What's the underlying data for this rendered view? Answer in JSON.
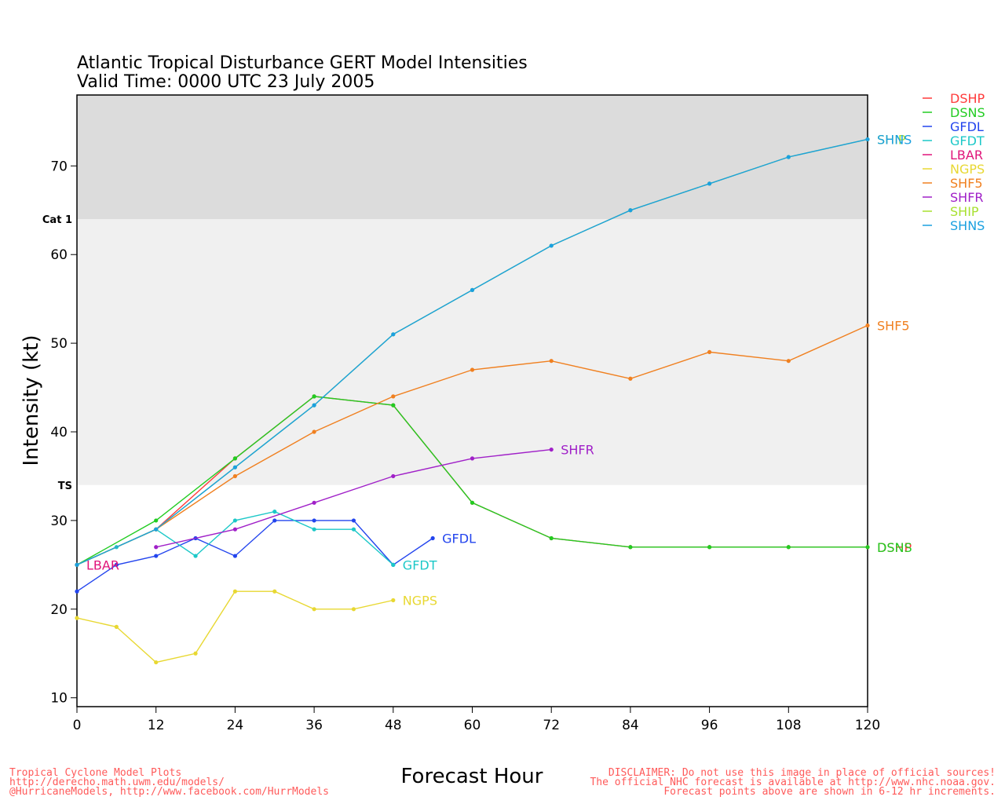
{
  "chart_data": {
    "type": "line",
    "title": "Atlantic Tropical Disturbance GERT Model Intensities",
    "subtitle": "Valid Time: 0000 UTC 23 July 2005",
    "xlabel": "Forecast Hour",
    "ylabel": "Intensity (kt)",
    "xlim": [
      0,
      120
    ],
    "ylim": [
      9,
      78
    ],
    "xticks": [
      "0",
      "12",
      "24",
      "36",
      "48",
      "60",
      "72",
      "84",
      "96",
      "108",
      "120"
    ],
    "yticks": [
      "10",
      "20",
      "30",
      "40",
      "50",
      "60",
      "70"
    ],
    "bands": [
      {
        "label": "TS",
        "from": 34,
        "to": 64,
        "color": "#f0f0f0"
      },
      {
        "label": "Cat 1",
        "from": 64,
        "to": 78,
        "color": "#dcdcdc"
      }
    ],
    "legend_position": "right",
    "series": [
      {
        "name": "DSHP",
        "color": "#ff3b3b",
        "points": [
          [
            0,
            25
          ],
          [
            12,
            29
          ],
          [
            24,
            37
          ],
          [
            36,
            44
          ],
          [
            48,
            43
          ],
          [
            60,
            32
          ],
          [
            72,
            28
          ],
          [
            84,
            27
          ],
          [
            96,
            27
          ],
          [
            108,
            27
          ],
          [
            120,
            27
          ]
        ],
        "end_label": "DSHP"
      },
      {
        "name": "DSNS",
        "color": "#22cc22",
        "points": [
          [
            0,
            25
          ],
          [
            12,
            30
          ],
          [
            24,
            37
          ],
          [
            36,
            44
          ],
          [
            48,
            43
          ],
          [
            60,
            32
          ],
          [
            72,
            28
          ],
          [
            84,
            27
          ],
          [
            96,
            27
          ],
          [
            108,
            27
          ],
          [
            120,
            27
          ]
        ],
        "end_label": "DSNS"
      },
      {
        "name": "GFDL",
        "color": "#2244ee",
        "points": [
          [
            0,
            22
          ],
          [
            6,
            25
          ],
          [
            12,
            26
          ],
          [
            18,
            28
          ],
          [
            24,
            26
          ],
          [
            30,
            30
          ],
          [
            36,
            30
          ],
          [
            42,
            30
          ],
          [
            48,
            25
          ],
          [
            54,
            28
          ]
        ],
        "end_label": "GFDL"
      },
      {
        "name": "GFDT",
        "color": "#1cc8c8",
        "points": [
          [
            0,
            25
          ],
          [
            6,
            27
          ],
          [
            12,
            29
          ],
          [
            18,
            26
          ],
          [
            24,
            30
          ],
          [
            30,
            31
          ],
          [
            36,
            29
          ],
          [
            42,
            29
          ],
          [
            48,
            25
          ]
        ],
        "end_label": "GFDT"
      },
      {
        "name": "LBAR",
        "color": "#e0157a",
        "points": [
          [
            0,
            25
          ]
        ],
        "end_label": "LBAR"
      },
      {
        "name": "NGPS",
        "color": "#e8d832",
        "points": [
          [
            0,
            19
          ],
          [
            6,
            18
          ],
          [
            12,
            14
          ],
          [
            18,
            15
          ],
          [
            24,
            22
          ],
          [
            30,
            22
          ],
          [
            36,
            20
          ],
          [
            42,
            20
          ],
          [
            48,
            21
          ]
        ],
        "end_label": "NGPS"
      },
      {
        "name": "SHF5",
        "color": "#f08020",
        "points": [
          [
            0,
            25
          ],
          [
            12,
            29
          ],
          [
            24,
            35
          ],
          [
            36,
            40
          ],
          [
            48,
            44
          ],
          [
            60,
            47
          ],
          [
            72,
            48
          ],
          [
            84,
            46
          ],
          [
            96,
            49
          ],
          [
            108,
            48
          ],
          [
            120,
            52
          ]
        ],
        "end_label": "SHF5"
      },
      {
        "name": "SHFR",
        "color": "#a020c8",
        "points": [
          [
            12,
            27
          ],
          [
            24,
            29
          ],
          [
            36,
            32
          ],
          [
            48,
            35
          ],
          [
            60,
            37
          ],
          [
            72,
            38
          ]
        ],
        "end_label": "SHFR"
      },
      {
        "name": "SHIP",
        "color": "#a8e030",
        "points": [
          [
            0,
            25
          ],
          [
            12,
            29
          ],
          [
            24,
            36
          ],
          [
            36,
            43
          ],
          [
            48,
            51
          ],
          [
            60,
            56
          ],
          [
            72,
            61
          ],
          [
            84,
            65
          ],
          [
            96,
            68
          ],
          [
            108,
            71
          ],
          [
            120,
            73
          ]
        ],
        "end_label": "SHIP"
      },
      {
        "name": "SHNS",
        "color": "#1aa0e0",
        "points": [
          [
            0,
            25
          ],
          [
            12,
            29
          ],
          [
            24,
            36
          ],
          [
            36,
            43
          ],
          [
            48,
            51
          ],
          [
            60,
            56
          ],
          [
            72,
            61
          ],
          [
            84,
            65
          ],
          [
            96,
            68
          ],
          [
            108,
            71
          ],
          [
            120,
            73
          ]
        ],
        "end_label": "SHNS"
      }
    ]
  },
  "footer": {
    "left_line1": "Tropical Cyclone Model Plots",
    "left_line2": "http://derecho.math.uwm.edu/models/",
    "left_line3": "@HurricaneModels, http://www.facebook.com/HurrModels",
    "right_line1": "DISCLAIMER: Do not use this image in place of official sources!",
    "right_line2": "The official NHC forecast is available at http://www.nhc.noaa.gov.",
    "right_line3": "Forecast points above are shown in 6-12 hr increments."
  }
}
